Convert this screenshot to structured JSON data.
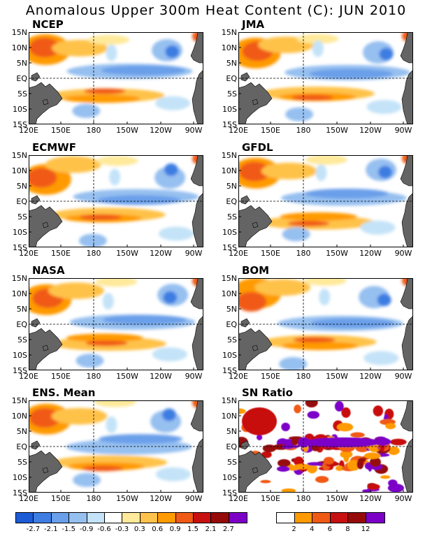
{
  "title": "Anomalous Upper 300m Heat Content (C): JUN 2010",
  "axes": {
    "y_ticks": [
      "15N",
      "10N",
      "5N",
      "EQ",
      "5S",
      "10S",
      "15S"
    ],
    "x_ticks": [
      "120E",
      "150E",
      "180",
      "150W",
      "120W",
      "90W"
    ]
  },
  "panels": [
    {
      "name": "NCEP",
      "label": "NCEP",
      "type": "anomaly"
    },
    {
      "name": "JMA",
      "label": "JMA",
      "type": "anomaly"
    },
    {
      "name": "ECMWF",
      "label": "ECMWF",
      "type": "anomaly"
    },
    {
      "name": "GFDL",
      "label": "GFDL",
      "type": "anomaly"
    },
    {
      "name": "NASA",
      "label": "NASA",
      "type": "anomaly"
    },
    {
      "name": "BOM",
      "label": "BOM",
      "type": "anomaly"
    },
    {
      "name": "ENS-Mean",
      "label": "ENS. Mean",
      "type": "anomaly"
    },
    {
      "name": "SN-Ratio",
      "label": "SN Ratio",
      "type": "snratio"
    }
  ],
  "anomaly_colorbar": {
    "colors": [
      "#1c5bd6",
      "#3e7de2",
      "#6a9fe9",
      "#96c0f0",
      "#c4e3f8",
      "#ffffff",
      "#ffe99a",
      "#ffc24a",
      "#ff9a00",
      "#f05a14",
      "#c81010",
      "#960a0a",
      "#7c00c8"
    ],
    "labels": [
      "-2.7",
      "-2.1",
      "-1.5",
      "-0.9",
      "-0.6",
      "-0.3",
      "0.3",
      "0.6",
      "0.9",
      "1.5",
      "2.1",
      "2.7"
    ]
  },
  "sn_colorbar": {
    "colors": [
      "#ffffff",
      "#ff9a00",
      "#f05a14",
      "#c81010",
      "#960a0a",
      "#7c00c8"
    ],
    "labels": [
      "2",
      "4",
      "6",
      "8",
      "12"
    ]
  },
  "colors": {
    "land": "#646464",
    "ocean": "#ffffff"
  }
}
